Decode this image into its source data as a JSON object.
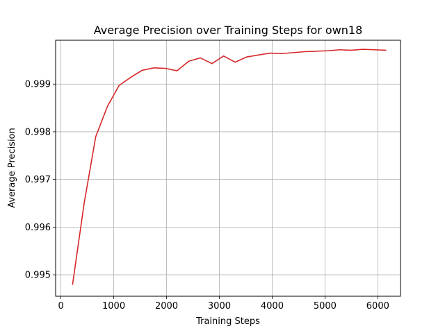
{
  "chart_data": {
    "type": "line",
    "title": "Average Precision over Training Steps for own18",
    "xlabel": "Training Steps",
    "ylabel": "Average Precision",
    "xlim": [
      -100,
      6430
    ],
    "ylim": [
      0.99455,
      0.99992
    ],
    "xticks": [
      0,
      1000,
      2000,
      3000,
      4000,
      5000,
      6000
    ],
    "xtick_labels": [
      "0",
      "1000",
      "2000",
      "3000",
      "4000",
      "5000",
      "6000"
    ],
    "yticks": [
      0.995,
      0.996,
      0.997,
      0.998,
      0.999
    ],
    "ytick_labels": [
      "0.995",
      "0.996",
      "0.997",
      "0.998",
      "0.999"
    ],
    "grid": true,
    "series_color": "#d62728",
    "series": [
      {
        "x": [
          220,
          440,
          660,
          880,
          1100,
          1320,
          1540,
          1760,
          1980,
          2200,
          2420,
          2640,
          2860,
          3080,
          3300,
          3520,
          3740,
          3960,
          4180,
          4400,
          4620,
          4840,
          5060,
          5280,
          5500,
          5720,
          5940,
          6160
        ],
        "y": [
          0.99479,
          0.9965,
          0.9979,
          0.99853,
          0.99897,
          0.99914,
          0.99929,
          0.99934,
          0.99933,
          0.99928,
          0.99948,
          0.99955,
          0.99943,
          0.99959,
          0.99946,
          0.99957,
          0.99961,
          0.99965,
          0.99964,
          0.99966,
          0.99968,
          0.99969,
          0.9997,
          0.99972,
          0.99971,
          0.99973,
          0.99972,
          0.99971
        ]
      }
    ]
  }
}
